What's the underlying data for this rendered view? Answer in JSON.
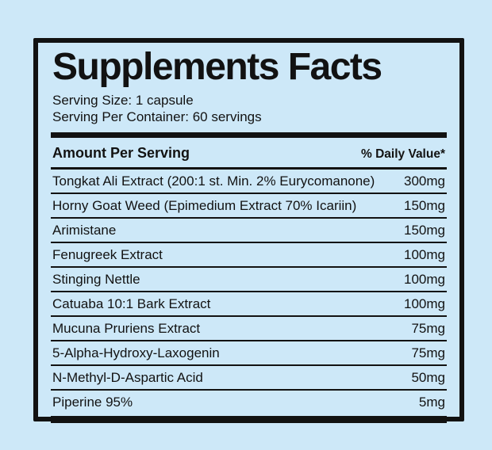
{
  "colors": {
    "background": "#cde8f8",
    "ink": "#121212"
  },
  "panel": {
    "title": "Supplements Facts",
    "serving_size": "Serving Size: 1 capsule",
    "serving_per_container": "Serving Per Container: 60 servings",
    "header": {
      "amount_label": "Amount Per Serving",
      "daily_value_label": "% Daily Value*"
    },
    "rows": [
      {
        "name": "Tongkat Ali Extract (200:1 st. Min. 2% Eurycomanone)",
        "amount": "300mg"
      },
      {
        "name": "Horny Goat Weed (Epimedium Extract 70% Icariin)",
        "amount": "150mg"
      },
      {
        "name": "Arimistane",
        "amount": "150mg"
      },
      {
        "name": "Fenugreek Extract",
        "amount": "100mg"
      },
      {
        "name": "Stinging Nettle",
        "amount": "100mg"
      },
      {
        "name": "Catuaba 10:1 Bark Extract",
        "amount": "100mg"
      },
      {
        "name": "Mucuna Pruriens Extract",
        "amount": "75mg"
      },
      {
        "name": "5-Alpha-Hydroxy-Laxogenin",
        "amount": "75mg"
      },
      {
        "name": "N-Methyl-D-Aspartic Acid",
        "amount": "50mg"
      },
      {
        "name": "Piperine 95%",
        "amount": "5mg"
      }
    ]
  }
}
